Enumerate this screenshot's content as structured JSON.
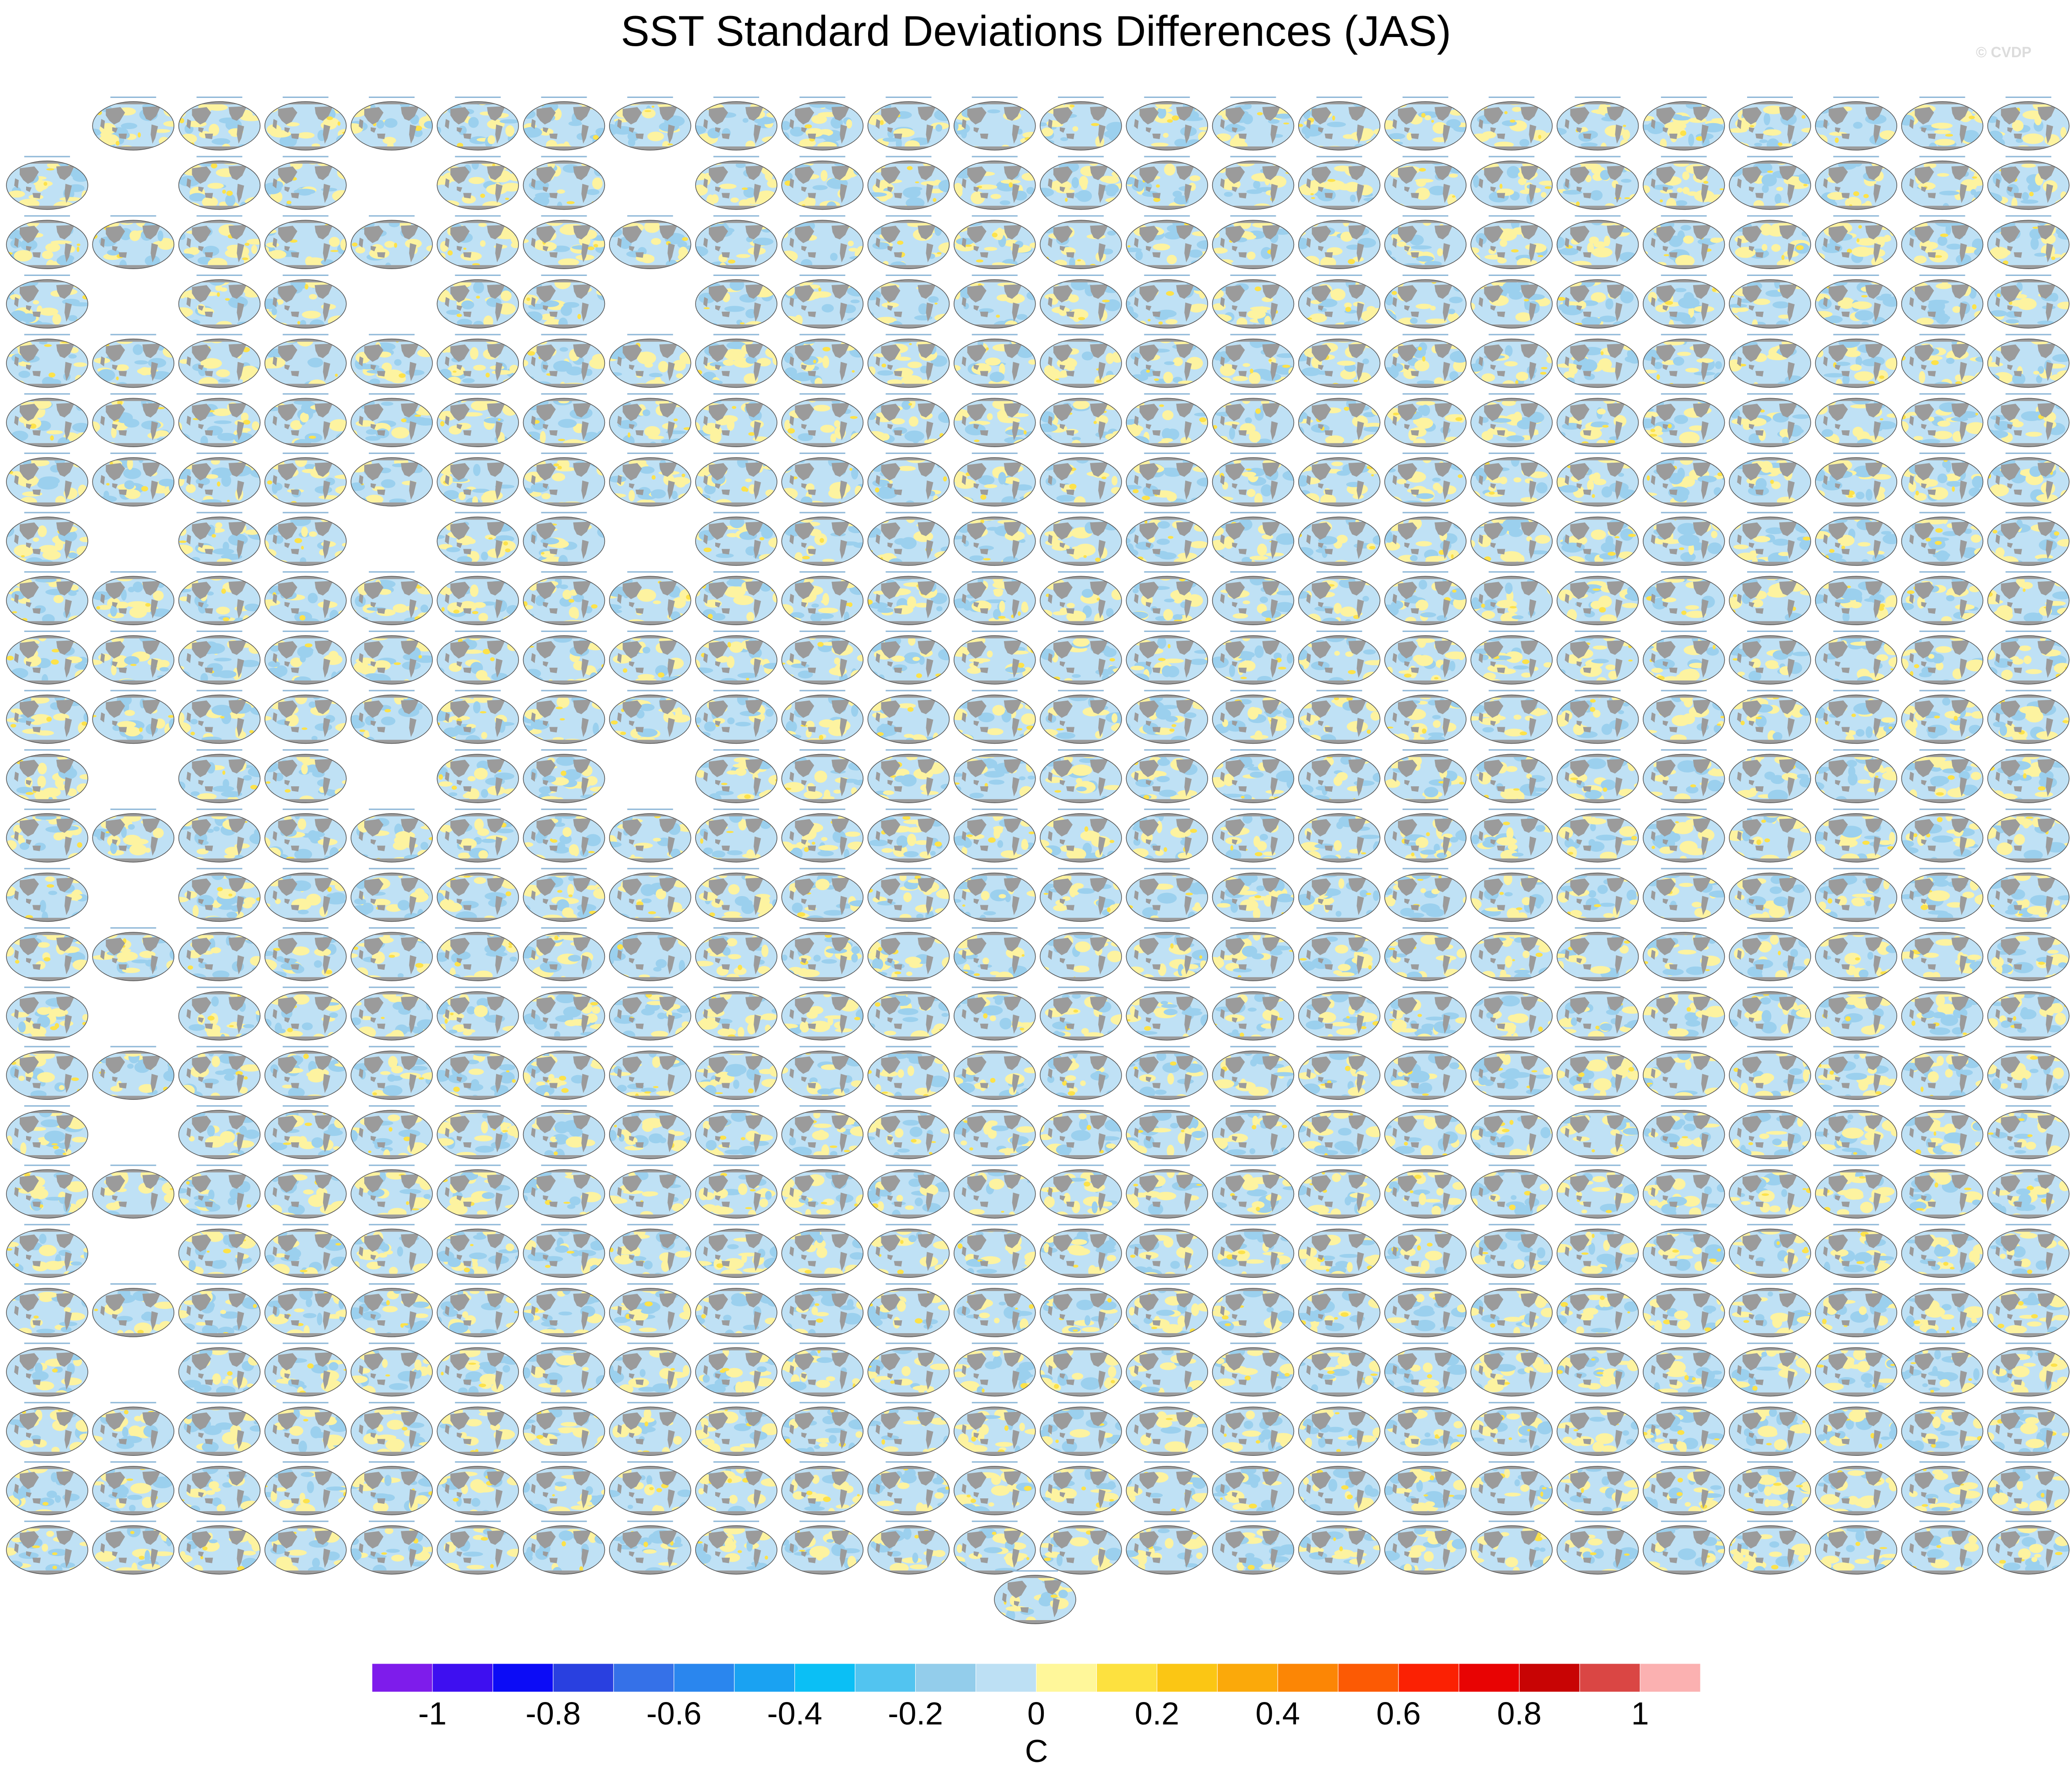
{
  "page": {
    "title": "SST Standard Deviations Differences (JAS)",
    "credit": "© CVDP"
  },
  "chart_data": {
    "type": "heatmap",
    "title": "SST Standard Deviations Differences (JAS)",
    "description_of_layout": "grid of small global SST-difference maps",
    "grid": {
      "rows": 25,
      "columns": 24
    },
    "row_patterns": [
      "full",
      "sparse",
      "full",
      "sparse",
      "full",
      "full",
      "full",
      "sparse",
      "full",
      "full",
      "full",
      "sparse",
      "full",
      "left-gap",
      "full",
      "left-gap",
      "full",
      "left-gap",
      "full",
      "left-gap",
      "full",
      "left-gap",
      "full",
      "full",
      "full"
    ],
    "extra_panel_below": true,
    "colorbar": {
      "label": "C",
      "boundaries": [
        -1.1,
        -1.0,
        -0.9,
        -0.8,
        -0.7,
        -0.6,
        -0.5,
        -0.4,
        -0.3,
        -0.2,
        -0.1,
        0,
        0.1,
        0.2,
        0.3,
        0.4,
        0.5,
        0.6,
        0.7,
        0.8,
        0.9,
        1.0,
        1.1
      ],
      "tick_labels": [
        "-1",
        "-0.8",
        "-0.6",
        "-0.4",
        "-0.2",
        "0",
        "0.2",
        "0.4",
        "0.6",
        "0.8",
        "1"
      ],
      "tick_values": [
        -1,
        -0.8,
        -0.6,
        -0.4,
        -0.2,
        0,
        0.2,
        0.4,
        0.6,
        0.8,
        1
      ],
      "colors": [
        "#7e1ceb",
        "#3e0ff0",
        "#0c0cf6",
        "#2940e0",
        "#3571e8",
        "#2a86ee",
        "#1aa2f2",
        "#0bbff5",
        "#52c4f0",
        "#93cdeb",
        "#bde0f4",
        "#fff79a",
        "#fde13f",
        "#fbc614",
        "#fba90a",
        "#fc8605",
        "#fc5a04",
        "#fb2103",
        "#e80303",
        "#c80404",
        "#da4644",
        "#fbb1b1"
      ]
    },
    "map_colors": {
      "ocean_neg": "#bfe1f5",
      "ocean_neg2": "#9bd0ee",
      "ocean_pos": "#fdf3a0",
      "ocean_pos2": "#fde24a",
      "land": "#9b9b9b"
    }
  }
}
